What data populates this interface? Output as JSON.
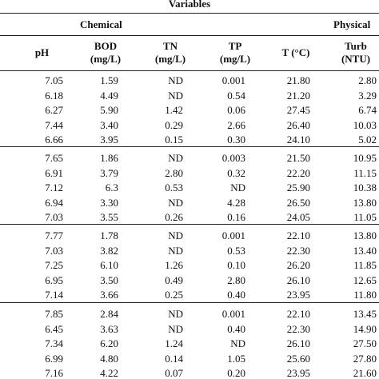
{
  "title": "Variables",
  "groups": {
    "chemical": "Chemical",
    "physical": "Physical"
  },
  "columns": [
    {
      "line1": "pH",
      "line2": ""
    },
    {
      "line1": "BOD",
      "line2": "(mg/L)"
    },
    {
      "line1": "TN",
      "line2": "(mg/L)"
    },
    {
      "line1": "TP",
      "line2": "(mg/L)"
    },
    {
      "line1": "T (°C)",
      "line2": ""
    },
    {
      "line1": "Turb",
      "line2": "(NTU)"
    }
  ],
  "blocks": [
    [
      [
        "7.05",
        "1.59",
        "ND",
        "0.001",
        "21.80",
        "2.80"
      ],
      [
        "6.18",
        "4.49",
        "ND",
        "0.54",
        "21.20",
        "3.29"
      ],
      [
        "6.27",
        "5.90",
        "1.42",
        "0.06",
        "27.45",
        "6.74"
      ],
      [
        "7.44",
        "3.40",
        "0.29",
        "2.66",
        "26.40",
        "10.03"
      ],
      [
        "6.66",
        "3.95",
        "0.15",
        "0.30",
        "24.10",
        "5.02"
      ]
    ],
    [
      [
        "7.65",
        "1.86",
        "ND",
        "0.003",
        "21.50",
        "10.95"
      ],
      [
        "6.91",
        "3.79",
        "2.80",
        "0.32",
        "22.20",
        "11.15"
      ],
      [
        "7.12",
        "6.3",
        "0.53",
        "ND",
        "25.90",
        "10.38"
      ],
      [
        "6.94",
        "3.30",
        "ND",
        "4.28",
        "26.50",
        "13.80"
      ],
      [
        "7.03",
        "3.55",
        "0.26",
        "0.16",
        "24.05",
        "11.05"
      ]
    ],
    [
      [
        "7.77",
        "1.78",
        "ND",
        "0.001",
        "22.10",
        "13.80"
      ],
      [
        "7.03",
        "3.82",
        "ND",
        "0.53",
        "22.30",
        "13.40"
      ],
      [
        "7.25",
        "6.10",
        "1.26",
        "0.10",
        "26.20",
        "11.85"
      ],
      [
        "6.95",
        "3.50",
        "0.49",
        "2.80",
        "26.10",
        "12.65"
      ],
      [
        "7.14",
        "3.66",
        "0.25",
        "0.40",
        "23.95",
        "11.80"
      ]
    ],
    [
      [
        "7.85",
        "2.84",
        "ND",
        "0.001",
        "22.10",
        "13.45"
      ],
      [
        "6.45",
        "3.63",
        "ND",
        "0.40",
        "22.30",
        "14.90"
      ],
      [
        "7.34",
        "6.20",
        "1.24",
        "ND",
        "26.10",
        "27.50"
      ],
      [
        "6.99",
        "4.80",
        "0.14",
        "1.05",
        "25.60",
        "27.80"
      ],
      [
        "7.16",
        "4.22",
        "0.07",
        "0.20",
        "23.95",
        "21.60"
      ]
    ]
  ]
}
